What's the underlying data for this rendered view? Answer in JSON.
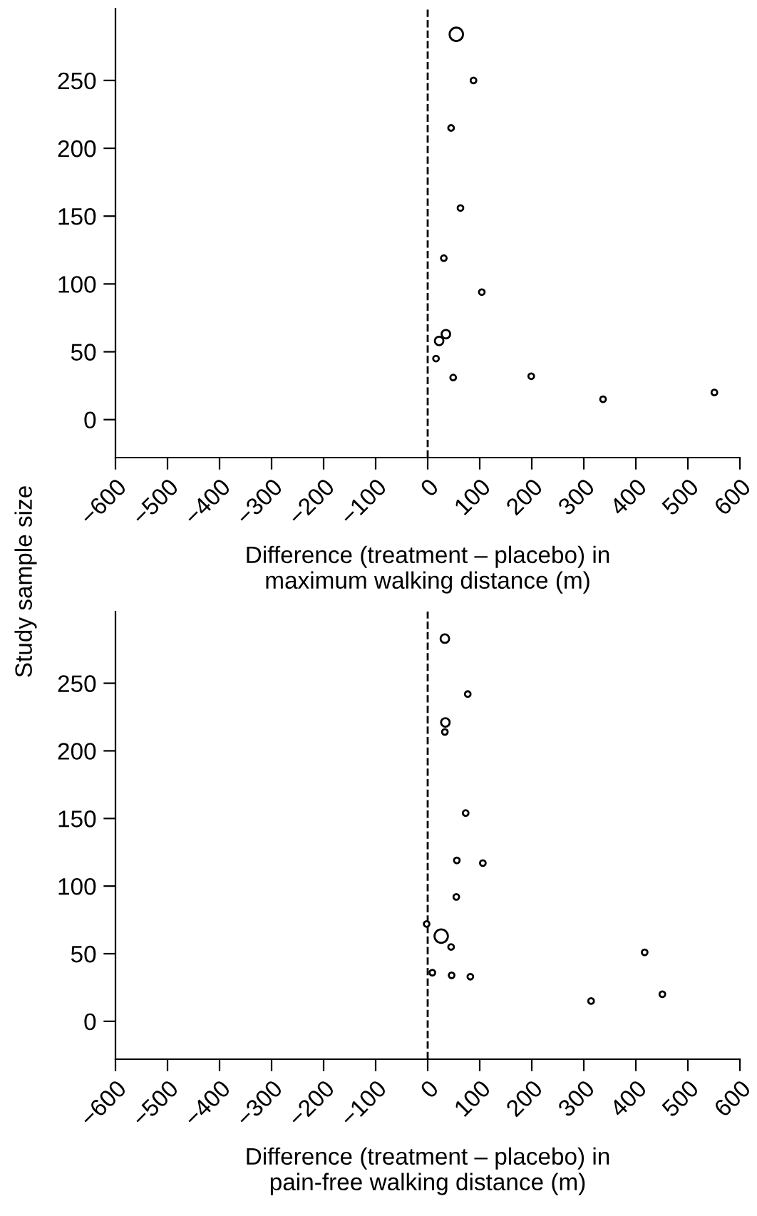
{
  "chart_data": [
    {
      "type": "bubble",
      "xlabel": "Difference (treatment – placebo) in\nmaximum walking distance (m)",
      "ylabel": "Study sample size",
      "xlim": [
        -600,
        600
      ],
      "xticks": [
        -600,
        -500,
        -400,
        -300,
        -200,
        -100,
        0,
        100,
        200,
        300,
        400,
        500,
        600
      ],
      "ylim": [
        -28,
        303
      ],
      "yticks": [
        0,
        50,
        100,
        150,
        200,
        250
      ],
      "grid": false,
      "marker": "circle",
      "ref_lines": [
        {
          "axis": "x",
          "value": 0,
          "color": "#000000",
          "line_style": "dashed"
        }
      ],
      "series": [
        {
          "color": "#000000",
          "x": [
            55,
            88,
            45,
            63,
            31,
            104,
            35,
            22,
            16,
            49,
            199,
            337,
            551
          ],
          "values": [
            284,
            250,
            215,
            156,
            119,
            94,
            63,
            58,
            45,
            31,
            32,
            15,
            20
          ],
          "sizes": [
            1,
            0.18,
            0.18,
            0.18,
            0.18,
            0.18,
            0.41,
            0.41,
            0.18,
            0.18,
            0.18,
            0.18,
            0.18
          ]
        }
      ]
    },
    {
      "type": "bubble",
      "xlabel": "Difference (treatment – placebo) in\npain-free walking distance (m)",
      "xlim": [
        -600,
        600
      ],
      "xticks": [
        -600,
        -500,
        -400,
        -300,
        -200,
        -100,
        0,
        100,
        200,
        300,
        400,
        500,
        600
      ],
      "ylim": [
        -28,
        303
      ],
      "yticks": [
        0,
        50,
        100,
        150,
        200,
        250
      ],
      "grid": false,
      "marker": "circle",
      "ref_lines": [
        {
          "axis": "x",
          "value": 0,
          "color": "#000000",
          "line_style": "dashed"
        }
      ],
      "series": [
        {
          "color": "#000000",
          "x": [
            33,
            77,
            34,
            33,
            73,
            56,
            106,
            55,
            -2,
            26,
            45,
            9,
            46,
            82,
            417,
            451,
            314
          ],
          "values": [
            283,
            242,
            221,
            214,
            154,
            119,
            117,
            92,
            72,
            63,
            55,
            36,
            34,
            33,
            51,
            20,
            15
          ],
          "sizes": [
            0.41,
            0.18,
            0.41,
            0.18,
            0.18,
            0.18,
            0.18,
            0.18,
            0.18,
            1,
            0.18,
            0.18,
            0.18,
            0.18,
            0.18,
            0.18,
            0.18
          ]
        }
      ]
    }
  ]
}
